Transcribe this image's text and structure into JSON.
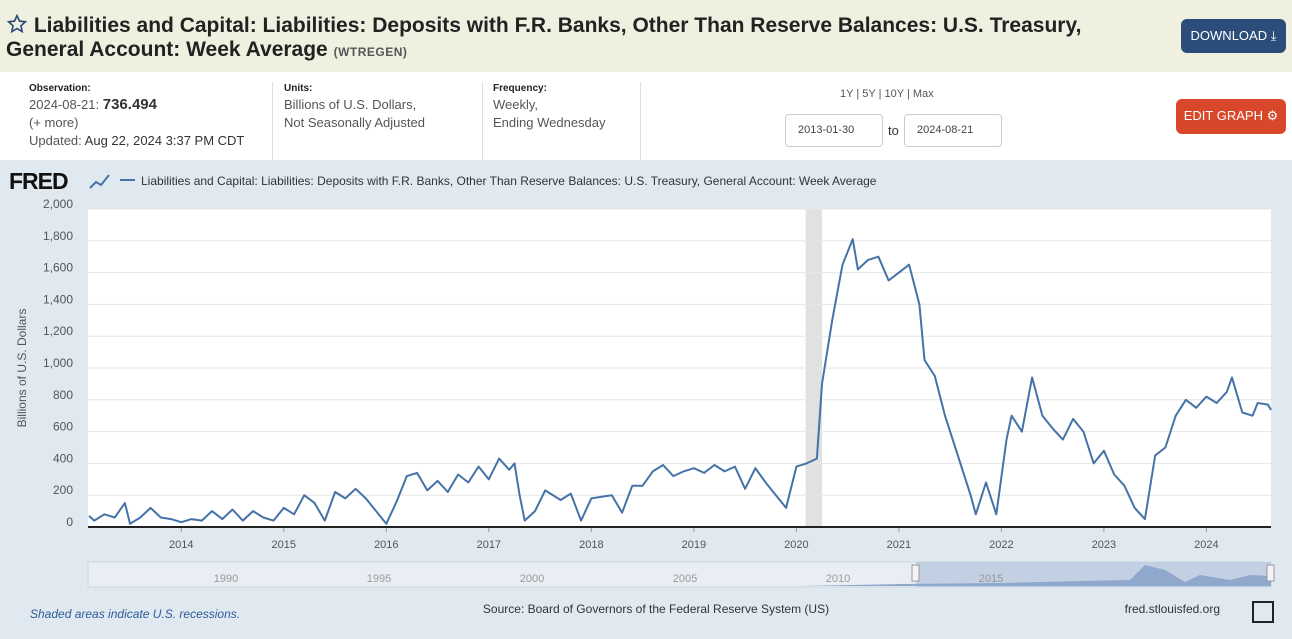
{
  "header": {
    "title": "Liabilities and Capital: Liabilities: Deposits with F.R. Banks, Other Than Reserve Balances: U.S. Treasury, General Account: Week Average",
    "series_id": "(WTREGEN)",
    "download": "DOWNLOAD"
  },
  "info": {
    "observation_label": "Observation:",
    "observation_date": "2024-08-21:",
    "observation_value": "736.494",
    "more": "(+ more)",
    "updated_label": "Updated:",
    "updated": "Aug 22, 2024 3:37 PM CDT",
    "units_label": "Units:",
    "units": [
      "Billions of U.S. Dollars,",
      "Not Seasonally Adjusted"
    ],
    "frequency_label": "Frequency:",
    "frequency": [
      "Weekly,",
      "Ending Wednesday"
    ]
  },
  "range": {
    "options": [
      "1Y",
      "5Y",
      "10Y",
      "Max"
    ],
    "separator": "|",
    "start": "2013-01-30",
    "to": "to",
    "end": "2024-08-21",
    "edit": "EDIT GRAPH"
  },
  "chart_data": {
    "type": "line",
    "logo": "FRED",
    "ylabel": "Billions of U.S. Dollars",
    "x": [
      2013.1,
      2013.15,
      2013.25,
      2013.35,
      2013.45,
      2013.5,
      2013.6,
      2013.7,
      2013.8,
      2013.9,
      2014.0,
      2014.1,
      2014.2,
      2014.3,
      2014.4,
      2014.5,
      2014.6,
      2014.7,
      2014.8,
      2014.9,
      2015.0,
      2015.1,
      2015.2,
      2015.3,
      2015.4,
      2015.5,
      2015.6,
      2015.7,
      2015.8,
      2015.9,
      2016.0,
      2016.1,
      2016.2,
      2016.3,
      2016.4,
      2016.5,
      2016.6,
      2016.7,
      2016.8,
      2016.9,
      2017.0,
      2017.1,
      2017.2,
      2017.25,
      2017.3,
      2017.35,
      2017.45,
      2017.55,
      2017.7,
      2017.8,
      2017.9,
      2018.0,
      2018.1,
      2018.2,
      2018.3,
      2018.4,
      2018.5,
      2018.6,
      2018.7,
      2018.8,
      2018.9,
      2019.0,
      2019.1,
      2019.2,
      2019.3,
      2019.4,
      2019.5,
      2019.6,
      2019.7,
      2019.8,
      2019.9,
      2020.0,
      2020.1,
      2020.2,
      2020.25,
      2020.35,
      2020.45,
      2020.55,
      2020.6,
      2020.7,
      2020.8,
      2020.9,
      2021.0,
      2021.1,
      2021.2,
      2021.25,
      2021.35,
      2021.45,
      2021.6,
      2021.7,
      2021.75,
      2021.85,
      2021.95,
      2022.05,
      2022.1,
      2022.2,
      2022.3,
      2022.4,
      2022.5,
      2022.6,
      2022.7,
      2022.8,
      2022.9,
      2023.0,
      2023.1,
      2023.2,
      2023.3,
      2023.4,
      2023.5,
      2023.6,
      2023.7,
      2023.8,
      2023.9,
      2024.0,
      2024.1,
      2024.2,
      2024.25,
      2024.35,
      2024.45,
      2024.5,
      2024.6,
      2024.63
    ],
    "series": [
      {
        "name": "Liabilities and Capital: Liabilities: Deposits with F.R. Banks, Other Than Reserve Balances: U.S. Treasury, General Account: Week Average",
        "color": "#4572a7",
        "values": [
          70,
          40,
          80,
          60,
          150,
          20,
          60,
          120,
          60,
          50,
          30,
          50,
          40,
          100,
          50,
          110,
          40,
          100,
          60,
          40,
          120,
          80,
          200,
          150,
          40,
          220,
          180,
          240,
          180,
          100,
          20,
          160,
          320,
          340,
          230,
          290,
          220,
          330,
          280,
          380,
          300,
          430,
          360,
          400,
          200,
          40,
          100,
          230,
          170,
          210,
          40,
          180,
          190,
          200,
          90,
          260,
          260,
          350,
          390,
          320,
          350,
          370,
          340,
          390,
          350,
          380,
          240,
          370,
          280,
          200,
          120,
          380,
          400,
          430,
          900,
          1300,
          1650,
          1810,
          1620,
          1680,
          1700,
          1550,
          1600,
          1650,
          1400,
          1050,
          950,
          700,
          400,
          200,
          80,
          280,
          80,
          550,
          700,
          600,
          940,
          700,
          620,
          550,
          680,
          600,
          400,
          480,
          330,
          260,
          120,
          50,
          450,
          500,
          700,
          800,
          750,
          820,
          780,
          850,
          940,
          720,
          700,
          780,
          770,
          736
        ]
      }
    ],
    "xlim": [
      2013.09,
      2024.63
    ],
    "xticks": [
      2014,
      2015,
      2016,
      2017,
      2018,
      2019,
      2020,
      2021,
      2022,
      2023,
      2024
    ],
    "ylim": [
      0,
      2000
    ],
    "yticks": [
      0,
      200,
      400,
      600,
      800,
      {
        "value": 1000,
        "label": "1,000"
      },
      {
        "value": 1200,
        "label": "1,200"
      },
      {
        "value": 1400,
        "label": "1,400"
      },
      {
        "value": 1600,
        "label": "1,600"
      },
      {
        "value": 1800,
        "label": "1,800"
      },
      {
        "value": 2000,
        "label": "2,000"
      }
    ],
    "grid": true,
    "recessions": [
      [
        2020.09,
        2020.25
      ]
    ],
    "recession_color": "#e1e1e1"
  },
  "navigator": {
    "labels": [
      "1990",
      "1995",
      "2000",
      "2005",
      "2010",
      "2015"
    ]
  },
  "footer": {
    "note": "Shaded areas indicate U.S. recessions.",
    "source": "Source: Board of Governors of the Federal Reserve System (US)",
    "site": "fred.stlouisfed.org"
  }
}
